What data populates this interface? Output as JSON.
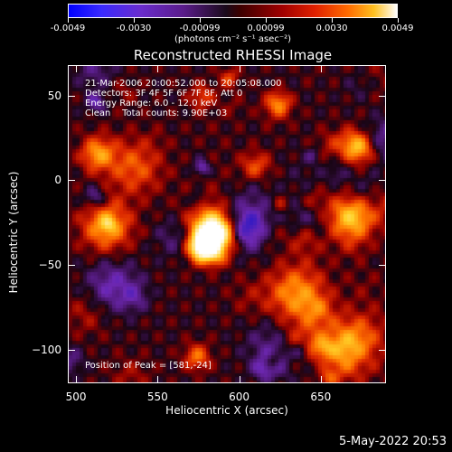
{
  "colorbar": {
    "ticks": [
      "-0.0049",
      "-0.0030",
      "-0.00099",
      "0.00099",
      "0.0030",
      "0.0049"
    ],
    "units": "(photons cm⁻² s⁻¹ asec⁻²)"
  },
  "chart_data": {
    "type": "heatmap",
    "title": "Reconstructed RHESSI Image",
    "xlabel": "Heliocentric X (arcsec)",
    "ylabel": "Heliocentric Y (arcsec)",
    "xlim": [
      495,
      690
    ],
    "ylim": [
      -120,
      68
    ],
    "xticks": [
      "500",
      "550",
      "600",
      "650"
    ],
    "yticks": [
      "50",
      "0",
      "−50",
      "−100"
    ],
    "peak_position": [
      581,
      -24
    ],
    "annotations": {
      "time": "21-Mar-2006 20:00:52.000 to 20:05:08.000",
      "detectors": "Detectors: 3F 4F 5F 6F 7F 8F, Att 0",
      "energy": "Energy Range: 6.0 - 12.0 keV",
      "clean": "Clean    Total counts: 9.90E+03",
      "peak": "Position of Peak = [581,-24]"
    }
  },
  "timestamp": "5-May-2022 20:53"
}
